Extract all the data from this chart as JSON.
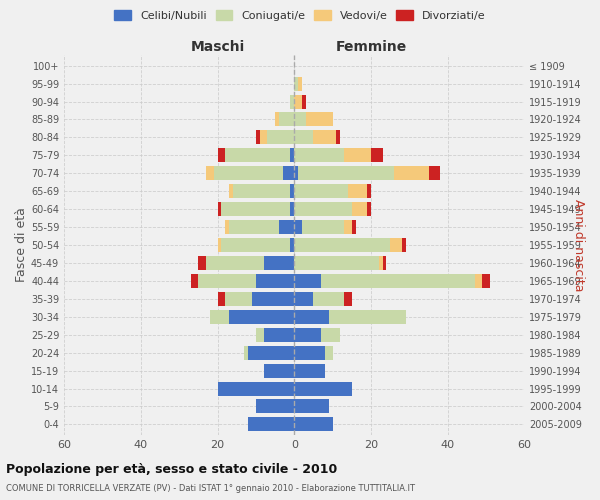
{
  "age_groups": [
    "0-4",
    "5-9",
    "10-14",
    "15-19",
    "20-24",
    "25-29",
    "30-34",
    "35-39",
    "40-44",
    "45-49",
    "50-54",
    "55-59",
    "60-64",
    "65-69",
    "70-74",
    "75-79",
    "80-84",
    "85-89",
    "90-94",
    "95-99",
    "100+"
  ],
  "birth_years": [
    "2005-2009",
    "2000-2004",
    "1995-1999",
    "1990-1994",
    "1985-1989",
    "1980-1984",
    "1975-1979",
    "1970-1974",
    "1965-1969",
    "1960-1964",
    "1955-1959",
    "1950-1954",
    "1945-1949",
    "1940-1944",
    "1935-1939",
    "1930-1934",
    "1925-1929",
    "1920-1924",
    "1915-1919",
    "1910-1914",
    "≤ 1909"
  ],
  "colors": {
    "celibi": "#4472c4",
    "coniugati": "#c8d9a8",
    "vedovi": "#f5c97a",
    "divorziati": "#cc2222"
  },
  "males": {
    "celibi": [
      12,
      10,
      20,
      8,
      12,
      8,
      17,
      11,
      10,
      8,
      1,
      4,
      1,
      1,
      3,
      1,
      0,
      0,
      0,
      0,
      0
    ],
    "coniugati": [
      0,
      0,
      0,
      0,
      1,
      2,
      5,
      7,
      15,
      15,
      18,
      13,
      18,
      15,
      18,
      17,
      7,
      4,
      1,
      0,
      0
    ],
    "vedovi": [
      0,
      0,
      0,
      0,
      0,
      0,
      0,
      0,
      0,
      0,
      1,
      1,
      0,
      1,
      2,
      0,
      2,
      1,
      0,
      0,
      0
    ],
    "divorziati": [
      0,
      0,
      0,
      0,
      0,
      0,
      0,
      2,
      2,
      2,
      0,
      0,
      1,
      0,
      0,
      2,
      1,
      0,
      0,
      0,
      0
    ]
  },
  "females": {
    "nubili": [
      10,
      9,
      15,
      8,
      8,
      7,
      9,
      5,
      7,
      0,
      0,
      2,
      0,
      0,
      1,
      0,
      0,
      0,
      0,
      0,
      0
    ],
    "coniugate": [
      0,
      0,
      0,
      0,
      2,
      5,
      20,
      8,
      40,
      22,
      25,
      11,
      15,
      14,
      25,
      13,
      5,
      3,
      0,
      1,
      0
    ],
    "vedove": [
      0,
      0,
      0,
      0,
      0,
      0,
      0,
      0,
      2,
      1,
      3,
      2,
      4,
      5,
      9,
      7,
      6,
      7,
      2,
      1,
      0
    ],
    "divorziate": [
      0,
      0,
      0,
      0,
      0,
      0,
      0,
      2,
      2,
      1,
      1,
      1,
      1,
      1,
      3,
      3,
      1,
      0,
      1,
      0,
      0
    ]
  },
  "xlim": 60,
  "title_main": "Popolazione per età, sesso e stato civile - 2010",
  "title_sub": "COMUNE DI TORRICELLA VERZATE (PV) - Dati ISTAT 1° gennaio 2010 - Elaborazione TUTTITALIA.IT",
  "ylabel_left": "Fasce di età",
  "ylabel_right": "Anni di nascita",
  "legend_labels": [
    "Celibi/Nubili",
    "Coniugati/e",
    "Vedovi/e",
    "Divorziati/e"
  ],
  "bg_color": "#f0f0f0",
  "grid_color": "#cccccc"
}
